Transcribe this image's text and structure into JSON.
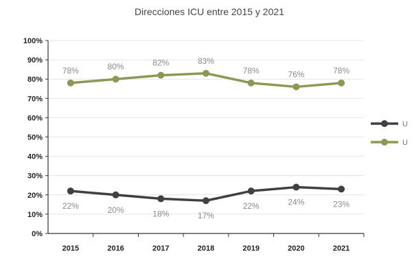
{
  "chart_data": {
    "type": "line",
    "title": "Direcciones ICU entre 2015 y 2021",
    "categories": [
      "2015",
      "2016",
      "2017",
      "2018",
      "2019",
      "2020",
      "2021"
    ],
    "ylim": [
      0,
      100
    ],
    "yticks": [
      "0%",
      "10%",
      "20%",
      "30%",
      "40%",
      "50%",
      "60%",
      "70%",
      "80%",
      "90%",
      "100%"
    ],
    "grid": true,
    "legend_position": "right",
    "series": [
      {
        "key": "dark",
        "name": "U",
        "color": "#404040",
        "values": [
          22,
          20,
          18,
          17,
          22,
          24,
          23
        ],
        "labels": [
          "22%",
          "20%",
          "18%",
          "17%",
          "22%",
          "24%",
          "23%"
        ]
      },
      {
        "key": "green",
        "name": "U",
        "color": "#8a9a55",
        "values": [
          78,
          80,
          82,
          83,
          78,
          76,
          78
        ],
        "labels": [
          "78%",
          "80%",
          "82%",
          "83%",
          "78%",
          "76%",
          "78%"
        ]
      }
    ]
  }
}
